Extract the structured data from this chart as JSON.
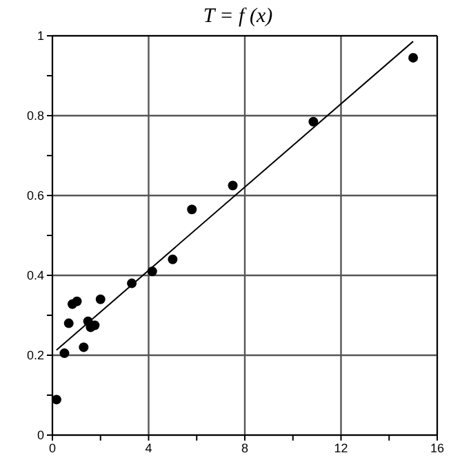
{
  "chart_data": {
    "type": "scatter",
    "title": "T = f (x)",
    "xlim": [
      0,
      16
    ],
    "ylim": [
      0,
      1
    ],
    "xticks": [
      0,
      {
        "value": 2,
        "label": null
      },
      4,
      {
        "value": 6,
        "label": null
      },
      8,
      {
        "value": 10,
        "label": null
      },
      12,
      {
        "value": 14,
        "label": null
      },
      16
    ],
    "yticks": [
      0,
      {
        "value": 0.1,
        "label": null
      },
      0.2,
      {
        "value": 0.3,
        "label": null
      },
      0.4,
      {
        "value": 0.5,
        "label": null
      },
      0.6,
      {
        "value": 0.7,
        "label": null
      },
      0.8,
      {
        "value": 0.9,
        "label": null
      },
      1
    ],
    "grid": true,
    "marker": "circle",
    "legend": false,
    "series": [
      {
        "color": "#000000",
        "x": [
          0.17,
          0.5,
          0.68,
          0.83,
          1.02,
          1.3,
          1.48,
          1.59,
          1.76,
          2.0,
          3.3,
          4.15,
          5.0,
          5.8,
          7.5,
          10.85,
          15.0
        ],
        "values": [
          0.089,
          0.205,
          0.28,
          0.328,
          0.335,
          0.22,
          0.285,
          0.27,
          0.275,
          0.34,
          0.38,
          0.41,
          0.44,
          0.565,
          0.625,
          0.785,
          0.945
        ]
      },
      {
        "type": "line",
        "color": "#000000",
        "marker": "none",
        "x": [
          0.17,
          15.0
        ],
        "values": [
          0.213,
          0.986
        ]
      }
    ]
  }
}
